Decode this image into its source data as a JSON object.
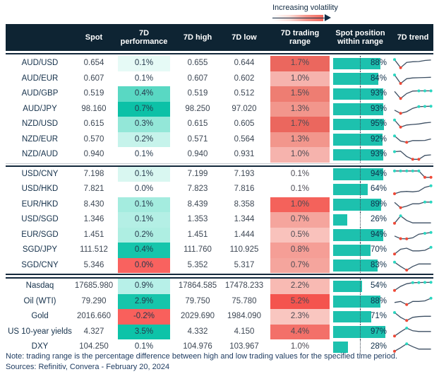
{
  "legend": {
    "label": "Increasing volatility"
  },
  "footer": {
    "note": "Note: trading range is the percentage difference between high and low trading values for the specified time period.",
    "sources": "Sources: Refinitiv, Convera - February 20, 2024"
  },
  "colors": {
    "header_bg": "#0e2433",
    "position_bar_teal": "#1dc1ae",
    "spark_line": "#3d4f63",
    "spark_max_dot": "#2bd6c0",
    "spark_min_dot": "#ef4937",
    "volatility_gradient_end": "#f3685e"
  },
  "chart_data": {
    "type": "table",
    "columns": [
      "",
      "Spot",
      "7D performance",
      "7D high",
      "7D low",
      "7D trading range",
      "Spot position within range",
      "7D trend"
    ],
    "group_breaks_after": [
      "NZD/AUD",
      "SGD/CNY"
    ],
    "rows": [
      {
        "label": "AUD/USD",
        "spot": "0.654",
        "perf": "0.1%",
        "high": "0.655",
        "low": "0.644",
        "range": "1.7%",
        "position": "88%",
        "position_pct": 88,
        "perf_bg": "#e6faf6",
        "range_bg": "#eb675e",
        "spark": {
          "y": [
            88,
            12,
            62,
            68,
            70,
            80,
            84
          ],
          "max": [
            0
          ],
          "min": [
            1
          ]
        }
      },
      {
        "label": "AUD/EUR",
        "spot": "0.607",
        "perf": "0.1%",
        "high": "0.607",
        "low": "0.602",
        "range": "1.0%",
        "position": "84%",
        "position_pct": 84,
        "perf_bg": "#ffffff",
        "range_bg": "#f6b3ad",
        "spark": {
          "y": [
            90,
            10,
            55,
            62,
            64,
            66,
            68
          ],
          "max": [
            0
          ],
          "min": [
            1
          ]
        }
      },
      {
        "label": "AUD/GBP",
        "spot": "0.519",
        "perf": "0.4%",
        "high": "0.519",
        "low": "0.512",
        "range": "1.5%",
        "position": "93%",
        "position_pct": 93,
        "perf_bg": "#59d8c3",
        "range_bg": "#ee7d72",
        "spark": {
          "y": [
            75,
            8,
            55,
            78,
            80,
            80,
            80
          ],
          "max": [
            4,
            5,
            6
          ],
          "min": [
            1
          ]
        }
      },
      {
        "label": "AUD/JPY",
        "spot": "98.160",
        "perf": "0.7%",
        "high": "98.250",
        "low": "97.020",
        "range": "1.3%",
        "position": "93%",
        "position_pct": 93,
        "perf_bg": "#0cc1a7",
        "range_bg": "#f2968c",
        "spark": {
          "y": [
            45,
            15,
            30,
            62,
            78,
            80,
            82
          ],
          "max": [
            4,
            5,
            6
          ],
          "min": [
            1
          ]
        }
      },
      {
        "label": "NZD/USD",
        "spot": "0.615",
        "perf": "0.3%",
        "high": "0.615",
        "low": "0.605",
        "range": "1.7%",
        "position": "95%",
        "position_pct": 95,
        "perf_bg": "#93e7d8",
        "range_bg": "#eb675e",
        "spark": {
          "y": [
            92,
            25,
            45,
            50,
            55,
            65,
            70
          ],
          "max": [
            0
          ],
          "min": [
            1
          ]
        }
      },
      {
        "label": "NZD/EUR",
        "spot": "0.570",
        "perf": "0.2%",
        "high": "0.571",
        "low": "0.564",
        "range": "1.3%",
        "position": "92%",
        "position_pct": 92,
        "perf_bg": "#c6f3eb",
        "range_bg": "#f2968c",
        "spark": {
          "y": [
            88,
            40,
            28,
            45,
            45,
            46,
            60
          ],
          "max": [
            0
          ],
          "min": [
            2
          ]
        }
      },
      {
        "label": "NZD/AUD",
        "spot": "0.940",
        "perf": "0.1%",
        "high": "0.940",
        "low": "0.931",
        "range": "1.0%",
        "position": "93%",
        "position_pct": 93,
        "perf_bg": "#ffffff",
        "range_bg": "#f6b3ad",
        "spark": {
          "y": [
            80,
            85,
            35,
            8,
            8,
            45,
            50
          ],
          "max": [
            0
          ],
          "min": [
            3,
            4
          ]
        }
      },
      {
        "label": "USD/CNY",
        "spot": "7.198",
        "perf": "0.1%",
        "high": "7.199",
        "low": "7.193",
        "range": "0.1%",
        "position": "94%",
        "position_pct": 94,
        "perf_bg": "#d9f7f1",
        "range_bg": "#ffffff",
        "spark": {
          "y": [
            85,
            85,
            85,
            85,
            85,
            25,
            25
          ],
          "max": [
            0,
            1,
            2,
            3,
            4
          ],
          "min": [
            5,
            6
          ]
        }
      },
      {
        "label": "USD/HKD",
        "spot": "7.821",
        "perf": "0.0%",
        "high": "7.823",
        "low": "7.816",
        "range": "0.1%",
        "position": "64%",
        "position_pct": 64,
        "perf_bg": "#ffffff",
        "range_bg": "#ffffff",
        "spark": {
          "y": [
            10,
            28,
            32,
            28,
            35,
            70,
            85
          ],
          "max": [
            6
          ],
          "min": [
            0
          ]
        }
      },
      {
        "label": "EUR/HKD",
        "spot": "8.430",
        "perf": "0.1%",
        "high": "8.439",
        "low": "8.358",
        "range": "1.0%",
        "position": "89%",
        "position_pct": 89,
        "perf_bg": "#a4ecdf",
        "range_bg": "#f4625b",
        "spark": {
          "y": [
            75,
            25,
            40,
            62,
            62,
            78,
            78
          ],
          "max": [
            5,
            6
          ],
          "min": [
            1
          ]
        }
      },
      {
        "label": "USD/SGD",
        "spot": "1.346",
        "perf": "0.1%",
        "high": "1.353",
        "low": "1.344",
        "range": "0.7%",
        "position": "26%",
        "position_pct": 26,
        "perf_bg": "#b4efe5",
        "range_bg": "#f5a59d",
        "spark": {
          "y": [
            18,
            88,
            45,
            22,
            22,
            22,
            22
          ],
          "max": [
            1
          ],
          "min": [
            0
          ]
        }
      },
      {
        "label": "EUR/SGD",
        "spot": "1.451",
        "perf": "0.2%",
        "high": "1.451",
        "low": "1.444",
        "range": "0.5%",
        "position": "94%",
        "position_pct": 94,
        "perf_bg": "#aeeee2",
        "range_bg": "#f9c2bc",
        "spark": {
          "y": [
            45,
            20,
            18,
            28,
            62,
            70,
            78
          ],
          "max": [
            5,
            6
          ],
          "min": [
            1,
            2
          ]
        }
      },
      {
        "label": "SGD/JPY",
        "spot": "111.512",
        "perf": "0.4%",
        "high": "111.760",
        "low": "110.925",
        "range": "0.8%",
        "position": "70%",
        "position_pct": 70,
        "perf_bg": "#16c5ab",
        "range_bg": "#f59e96",
        "spark": {
          "y": [
            15,
            60,
            70,
            45,
            45,
            50,
            78
          ],
          "max": [
            6
          ],
          "min": [
            0
          ]
        }
      },
      {
        "label": "SGD/CNY",
        "spot": "5.346",
        "perf": "0.0%",
        "high": "5.352",
        "low": "5.317",
        "range": "0.7%",
        "position": "83%",
        "position_pct": 83,
        "perf_bg": "#f9625f",
        "range_bg": "#f5a59d",
        "spark": {
          "y": [
            85,
            45,
            10,
            45,
            68,
            68,
            68
          ],
          "max": [
            0
          ],
          "min": [
            2
          ]
        }
      },
      {
        "label": "Nasdaq",
        "spot": "17685.980",
        "perf": "0.9%",
        "high": "17864.585",
        "low": "17478.233",
        "range": "2.2%",
        "position": "54%",
        "position_pct": 54,
        "perf_bg": "#b7f0e8",
        "range_bg": "#f8bab3",
        "spark": {
          "y": [
            12,
            50,
            75,
            85,
            86,
            87,
            88
          ],
          "max": [
            3,
            4,
            5,
            6
          ],
          "min": [
            0
          ]
        }
      },
      {
        "label": "Oil (WTI)",
        "spot": "79.290",
        "perf": "2.9%",
        "high": "79.750",
        "low": "75.780",
        "range": "5.2%",
        "position": "88%",
        "position_pct": 88,
        "perf_bg": "#16c5ab",
        "range_bg": "#f4544e",
        "spark": {
          "y": [
            45,
            55,
            25,
            55,
            55,
            60,
            85
          ],
          "max": [
            6
          ],
          "min": [
            2
          ]
        }
      },
      {
        "label": "Gold",
        "spot": "2016.660",
        "perf": "-0.2%",
        "high": "2029.690",
        "low": "1984.090",
        "range": "2.3%",
        "position": "71%",
        "position_pct": 71,
        "perf_bg": "#f9605c",
        "range_bg": "#f9c6c0",
        "spark": {
          "y": [
            90,
            45,
            15,
            45,
            52,
            55,
            55
          ],
          "max": [
            0
          ],
          "min": [
            2
          ]
        }
      },
      {
        "label": "US 10-year yields",
        "spot": "4.327",
        "perf": "3.5%",
        "high": "4.332",
        "low": "4.150",
        "range": "4.4%",
        "position": "97%",
        "position_pct": 97,
        "perf_bg": "#0dc3a8",
        "range_bg": "#f37069",
        "spark": {
          "y": [
            15,
            55,
            90,
            65,
            58,
            58,
            58
          ],
          "max": [
            2
          ],
          "min": [
            0
          ]
        }
      },
      {
        "label": "DXY",
        "spot": "104.250",
        "perf": "0.1%",
        "high": "104.976",
        "low": "103.967",
        "range": "1.0%",
        "position": "28%",
        "position_pct": 28,
        "perf_bg": "#ffffff",
        "range_bg": "#ffffff",
        "spark": {
          "y": [
            12,
            45,
            82,
            55,
            32,
            32,
            32
          ],
          "max": [
            2
          ],
          "min": [
            0
          ]
        }
      }
    ]
  }
}
